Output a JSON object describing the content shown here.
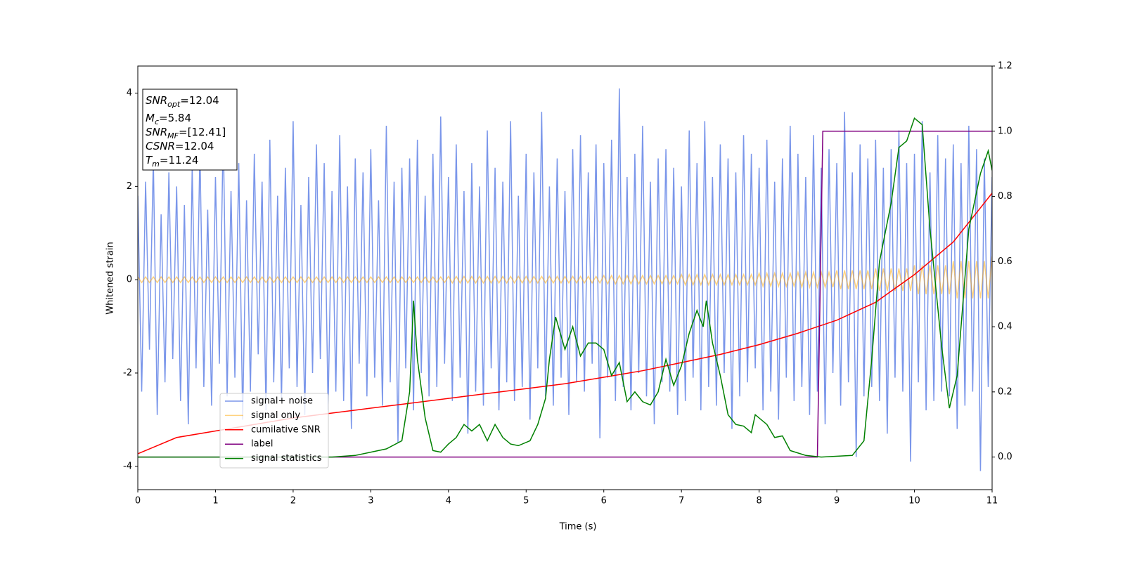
{
  "chart_data": {
    "type": "line",
    "xlabel": "Time (s)",
    "ylabel": "Whitened strain",
    "xlim": [
      0,
      11
    ],
    "xticks": [
      0,
      1,
      2,
      3,
      4,
      5,
      6,
      7,
      8,
      9,
      10,
      11
    ],
    "ylim": [
      -4.5,
      4.58
    ],
    "yticks": [
      -4,
      -2,
      0,
      2,
      4
    ],
    "y2lim": [
      -0.1,
      1.2
    ],
    "y2ticks": [
      {
        "value": 0,
        "label": "0.0"
      },
      0.2,
      0.4,
      0.6,
      0.8,
      {
        "value": 1,
        "label": "1.0"
      },
      1.2
    ],
    "legend": "lower left",
    "annotation": [
      {
        "name": "SNR",
        "sub": "opt",
        "text": "=12.04"
      },
      {
        "name": "M",
        "sub": "c",
        "text": "=5.84"
      },
      {
        "name": "SNR",
        "sub": "MF",
        "text": "=[12.41]"
      },
      {
        "name": "CSNR",
        "text": "=12.04"
      },
      {
        "name": "T",
        "sub": "m",
        "text": "=11.24"
      }
    ],
    "x": [
      0,
      0.05,
      0.1,
      0.15,
      0.2,
      0.25,
      0.3,
      0.35,
      0.4,
      0.45,
      0.5,
      0.55,
      0.6,
      0.65,
      0.7,
      0.75,
      0.8,
      0.85,
      0.9,
      0.95,
      1,
      1.05,
      1.1,
      1.15,
      1.2,
      1.25,
      1.3,
      1.35,
      1.4,
      1.45,
      1.5,
      1.55,
      1.6,
      1.65,
      1.7,
      1.75,
      1.8,
      1.85,
      1.9,
      1.95,
      2,
      2.05,
      2.1,
      2.15,
      2.2,
      2.25,
      2.3,
      2.35,
      2.4,
      2.45,
      2.5,
      2.55,
      2.6,
      2.65,
      2.7,
      2.75,
      2.8,
      2.85,
      2.9,
      2.95,
      3,
      3.05,
      3.1,
      3.15,
      3.2,
      3.25,
      3.3,
      3.35,
      3.4,
      3.45,
      3.5,
      3.55,
      3.6,
      3.65,
      3.7,
      3.75,
      3.8,
      3.85,
      3.9,
      3.95,
      4,
      4.05,
      4.1,
      4.15,
      4.2,
      4.25,
      4.3,
      4.35,
      4.4,
      4.45,
      4.5,
      4.55,
      4.6,
      4.65,
      4.7,
      4.75,
      4.8,
      4.85,
      4.9,
      4.95,
      5,
      5.05,
      5.1,
      5.15,
      5.2,
      5.25,
      5.3,
      5.35,
      5.4,
      5.45,
      5.5,
      5.55,
      5.6,
      5.65,
      5.7,
      5.75,
      5.8,
      5.85,
      5.9,
      5.95,
      6,
      6.05,
      6.1,
      6.15,
      6.2,
      6.25,
      6.3,
      6.35,
      6.4,
      6.45,
      6.5,
      6.55,
      6.6,
      6.65,
      6.7,
      6.75,
      6.8,
      6.85,
      6.9,
      6.95,
      7,
      7.05,
      7.1,
      7.15,
      7.2,
      7.25,
      7.3,
      7.35,
      7.4,
      7.45,
      7.5,
      7.55,
      7.6,
      7.65,
      7.7,
      7.75,
      7.8,
      7.85,
      7.9,
      7.95,
      8,
      8.05,
      8.1,
      8.15,
      8.2,
      8.25,
      8.3,
      8.35,
      8.4,
      8.45,
      8.5,
      8.55,
      8.6,
      8.65,
      8.7,
      8.75,
      8.8,
      8.85,
      8.9,
      8.95,
      9,
      9.05,
      9.1,
      9.15,
      9.2,
      9.25,
      9.3,
      9.35,
      9.4,
      9.45,
      9.5,
      9.55,
      9.6,
      9.65,
      9.7,
      9.75,
      9.8,
      9.85,
      9.9,
      9.95,
      10,
      10.05,
      10.1,
      10.15,
      10.2,
      10.25,
      10.3,
      10.35,
      10.4,
      10.45,
      10.5,
      10.55,
      10.6,
      10.65,
      10.7,
      10.75,
      10.8,
      10.85,
      10.9,
      10.95,
      11
    ],
    "series": [
      {
        "name": "signal+ noise",
        "color": "#4169e1",
        "alpha": 0.7,
        "values": [
          1.8,
          -2.4,
          2.1,
          -1.5,
          2.6,
          -2.9,
          1.4,
          -2.2,
          2.3,
          -1.7,
          2.0,
          -2.6,
          1.6,
          -3.1,
          2.4,
          -1.9,
          2.8,
          -2.3,
          1.5,
          -2.7,
          2.2,
          -1.8,
          3.2,
          -2.5,
          1.9,
          -2.1,
          2.5,
          -3.0,
          1.7,
          -2.4,
          2.7,
          -1.6,
          2.1,
          -2.8,
          3.0,
          -2.2,
          1.8,
          -2.6,
          2.4,
          -1.9,
          3.4,
          -2.3,
          1.6,
          -2.9,
          2.2,
          -2.0,
          2.9,
          -1.7,
          2.5,
          -2.8,
          1.9,
          -2.4,
          3.1,
          -2.6,
          2.0,
          -3.2,
          2.6,
          -1.8,
          2.3,
          -2.5,
          2.8,
          -2.1,
          1.7,
          -2.7,
          3.3,
          -2.2,
          2.1,
          -3.5,
          2.4,
          -1.9,
          2.6,
          -2.8,
          3.0,
          -2.0,
          1.8,
          -2.5,
          2.7,
          -2.3,
          3.5,
          -1.8,
          2.2,
          -2.6,
          2.9,
          -2.1,
          1.9,
          -3.3,
          2.5,
          -2.4,
          2.0,
          -2.7,
          3.2,
          -1.9,
          2.4,
          -2.8,
          2.1,
          -2.2,
          3.4,
          -2.6,
          1.8,
          -2.3,
          2.7,
          -3.0,
          2.3,
          -1.9,
          3.6,
          -2.5,
          2.0,
          -2.7,
          2.6,
          -2.1,
          1.9,
          -2.9,
          2.8,
          -2.2,
          3.1,
          -2.4,
          2.3,
          -1.8,
          2.9,
          -3.4,
          2.5,
          -2.1,
          3.0,
          -2.6,
          4.1,
          -2.3,
          2.2,
          -2.8,
          2.7,
          -2.0,
          3.3,
          -2.5,
          2.1,
          -3.1,
          2.6,
          -2.2,
          2.8,
          -2.4,
          2.4,
          -2.9,
          2.0,
          -2.6,
          3.2,
          -2.1,
          2.5,
          -2.8,
          3.4,
          -2.3,
          2.2,
          -2.7,
          2.9,
          -2.0,
          2.6,
          -3.2,
          2.3,
          -2.5,
          3.1,
          -2.2,
          2.7,
          -1.9,
          2.4,
          -2.8,
          3.0,
          -2.4,
          2.1,
          -3.0,
          2.6,
          -2.1,
          3.3,
          -2.6,
          2.7,
          -2.3,
          2.2,
          -2.9,
          3.1,
          -2.4,
          2.4,
          -3.1,
          2.8,
          -2.0,
          2.5,
          -2.7,
          3.6,
          -2.2,
          2.3,
          -3.8,
          2.9,
          -2.5,
          2.6,
          -2.3,
          3.0,
          -2.6,
          2.4,
          -3.3,
          2.8,
          -2.1,
          3.2,
          -2.4,
          2.5,
          -3.9,
          2.7,
          -2.2,
          3.4,
          -2.8,
          2.3,
          -2.6,
          3.1,
          -2.4,
          2.6,
          -2.5,
          2.9,
          -3.2,
          2.5,
          -2.7,
          3.3,
          -2.4,
          2.8,
          -4.1,
          2.6,
          -2.3,
          2.2
        ]
      },
      {
        "name": "signal only",
        "color": "#ffa500",
        "alpha": 0.5,
        "values": [
          0.06,
          -0.06,
          0.06,
          -0.06,
          0.06,
          -0.06,
          0.06,
          -0.06,
          0.06,
          -0.06,
          0.06,
          -0.06,
          0.06,
          -0.06,
          0.06,
          -0.06,
          0.06,
          -0.06,
          0.06,
          -0.06,
          0.06,
          -0.06,
          0.06,
          -0.06,
          0.06,
          -0.06,
          0.06,
          -0.06,
          0.06,
          -0.06,
          0.06,
          -0.06,
          0.06,
          -0.06,
          0.06,
          -0.06,
          0.06,
          -0.06,
          0.06,
          -0.06,
          0.06,
          -0.06,
          0.06,
          -0.06,
          0.06,
          -0.06,
          0.06,
          -0.06,
          0.06,
          -0.06,
          0.06,
          -0.06,
          0.06,
          -0.06,
          0.06,
          -0.06,
          0.06,
          -0.06,
          0.06,
          -0.06,
          0.06,
          -0.06,
          0.06,
          -0.06,
          0.06,
          -0.06,
          0.06,
          -0.06,
          0.06,
          -0.06,
          0.06,
          -0.06,
          0.06,
          -0.06,
          0.06,
          -0.06,
          0.06,
          -0.06,
          0.06,
          -0.06,
          0.07,
          -0.07,
          0.07,
          -0.07,
          0.07,
          -0.07,
          0.07,
          -0.07,
          0.07,
          -0.07,
          0.07,
          -0.07,
          0.07,
          -0.07,
          0.07,
          -0.07,
          0.07,
          -0.07,
          0.07,
          -0.07,
          0.07,
          -0.07,
          0.07,
          -0.07,
          0.07,
          -0.07,
          0.07,
          -0.07,
          0.07,
          -0.07,
          0.07,
          -0.07,
          0.07,
          -0.07,
          0.07,
          -0.07,
          0.07,
          -0.07,
          0.07,
          -0.07,
          0.09,
          -0.09,
          0.09,
          -0.09,
          0.09,
          -0.09,
          0.09,
          -0.09,
          0.09,
          -0.09,
          0.09,
          -0.09,
          0.09,
          -0.09,
          0.09,
          -0.09,
          0.09,
          -0.09,
          0.09,
          -0.09,
          0.11,
          -0.11,
          0.11,
          -0.11,
          0.11,
          -0.11,
          0.11,
          -0.11,
          0.11,
          -0.11,
          0.11,
          -0.11,
          0.11,
          -0.11,
          0.11,
          -0.11,
          0.11,
          -0.11,
          0.11,
          -0.11,
          0.14,
          -0.14,
          0.14,
          -0.14,
          0.14,
          -0.14,
          0.14,
          -0.14,
          0.14,
          -0.14,
          0.16,
          -0.16,
          0.16,
          -0.16,
          0.16,
          -0.16,
          0.16,
          -0.16,
          0.16,
          -0.16,
          0.2,
          -0.2,
          0.2,
          -0.2,
          0.2,
          -0.2,
          0.2,
          -0.2,
          0.2,
          -0.2,
          0.24,
          -0.24,
          0.24,
          -0.24,
          0.24,
          -0.24,
          0.24,
          -0.24,
          0.24,
          -0.24,
          0.31,
          -0.31,
          0.31,
          -0.31,
          0.31,
          -0.31,
          0.31,
          -0.31,
          0.31,
          -0.31,
          0.4,
          -0.4,
          0.4,
          -0.4,
          0.4,
          -0.4,
          0.4,
          -0.4,
          0.4,
          -0.4,
          0.5
        ]
      },
      {
        "name": "cumilative SNR",
        "color": "#ff0000",
        "axis": "y2",
        "x": [
          0,
          0.5,
          1,
          1.5,
          2,
          2.5,
          3,
          3.5,
          4,
          4.5,
          5,
          5.5,
          6,
          6.5,
          7,
          7.5,
          8,
          8.5,
          9,
          9.5,
          10,
          10.5,
          11
        ],
        "values": [
          0.01,
          0.06,
          0.08,
          0.1,
          0.12,
          0.135,
          0.15,
          0.165,
          0.18,
          0.195,
          0.21,
          0.225,
          0.245,
          0.265,
          0.29,
          0.315,
          0.345,
          0.38,
          0.42,
          0.475,
          0.56,
          0.66,
          0.81
        ]
      },
      {
        "name": "label",
        "color": "#800080",
        "axis": "y2",
        "x": [
          0,
          8.75,
          8.82,
          11
        ],
        "values": [
          0,
          0,
          1,
          1
        ]
      },
      {
        "name": "signal statistics",
        "color": "#008000",
        "axis": "y2",
        "x": [
          0,
          2.5,
          2.8,
          3.2,
          3.4,
          3.5,
          3.55,
          3.6,
          3.7,
          3.8,
          3.9,
          4.0,
          4.1,
          4.2,
          4.3,
          4.4,
          4.5,
          4.6,
          4.7,
          4.8,
          4.9,
          5.05,
          5.15,
          5.25,
          5.3,
          5.38,
          5.5,
          5.6,
          5.7,
          5.8,
          5.9,
          6.0,
          6.1,
          6.2,
          6.3,
          6.4,
          6.5,
          6.6,
          6.7,
          6.8,
          6.9,
          7.0,
          7.1,
          7.2,
          7.28,
          7.32,
          7.4,
          7.5,
          7.6,
          7.7,
          7.8,
          7.9,
          7.95,
          8.1,
          8.2,
          8.3,
          8.4,
          8.6,
          8.8,
          9.2,
          9.35,
          9.45,
          9.55,
          9.7,
          9.8,
          9.9,
          10.0,
          10.1,
          10.2,
          10.35,
          10.45,
          10.55,
          10.7,
          10.85,
          10.95,
          11
        ],
        "values": [
          0,
          0,
          0.005,
          0.025,
          0.05,
          0.2,
          0.48,
          0.3,
          0.12,
          0.02,
          0.015,
          0.04,
          0.06,
          0.1,
          0.08,
          0.1,
          0.05,
          0.1,
          0.06,
          0.04,
          0.035,
          0.05,
          0.1,
          0.18,
          0.3,
          0.43,
          0.33,
          0.4,
          0.31,
          0.35,
          0.35,
          0.33,
          0.25,
          0.29,
          0.17,
          0.2,
          0.17,
          0.16,
          0.2,
          0.3,
          0.22,
          0.28,
          0.38,
          0.45,
          0.4,
          0.48,
          0.35,
          0.25,
          0.13,
          0.1,
          0.095,
          0.075,
          0.13,
          0.1,
          0.06,
          0.065,
          0.02,
          0.005,
          0,
          0.005,
          0.05,
          0.3,
          0.6,
          0.78,
          0.95,
          0.97,
          1.04,
          1.02,
          0.7,
          0.34,
          0.15,
          0.25,
          0.7,
          0.87,
          0.94,
          0.88
        ]
      }
    ]
  }
}
